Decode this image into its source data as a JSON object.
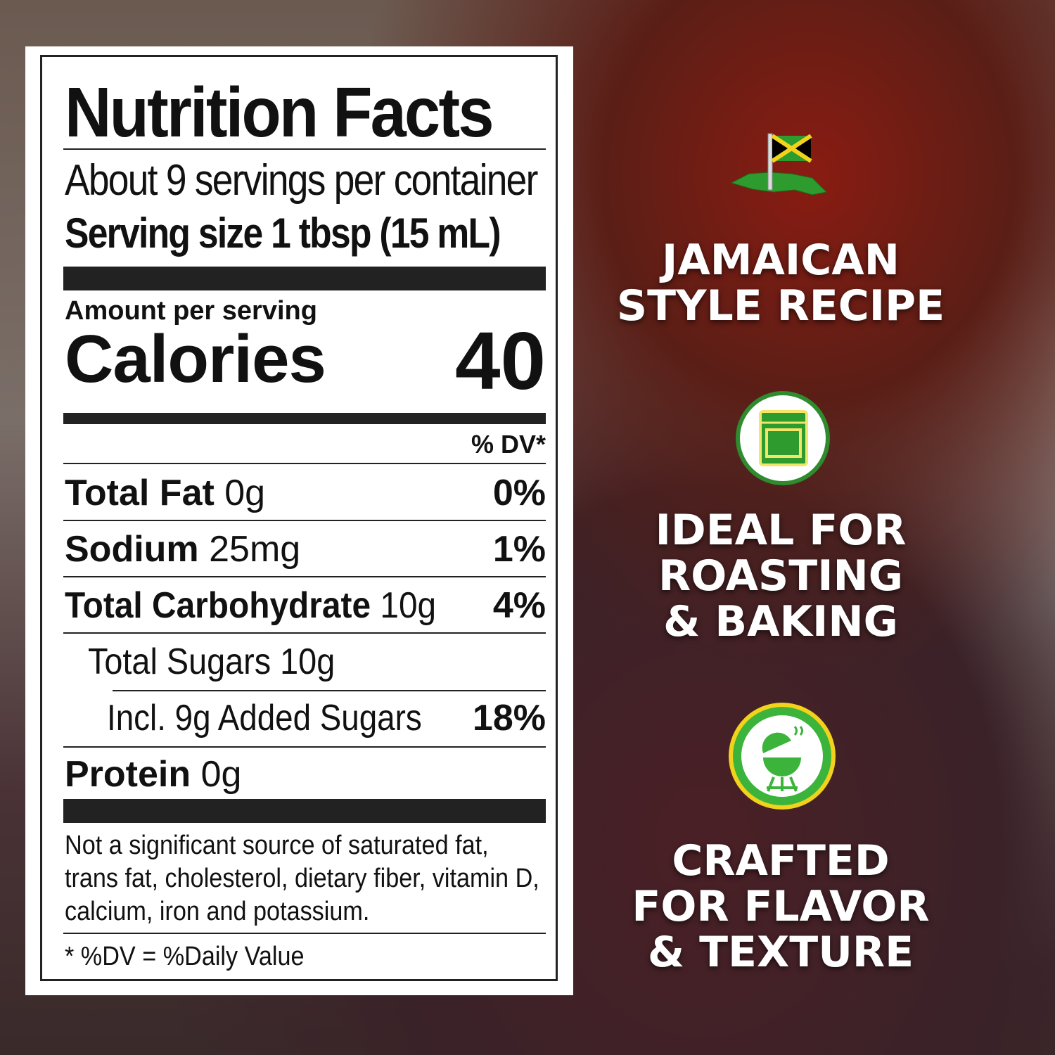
{
  "nutrition_label": {
    "title": "Nutrition Facts",
    "servings": "About 9 servings per container",
    "serving_size": "Serving size 1 tbsp (15 mL)",
    "amount_per_serving": "Amount per serving",
    "calories_label": "Calories",
    "calories_value": "40",
    "dv_header": "% DV*",
    "rows": [
      {
        "name": "Total Fat",
        "amount": "0g",
        "dv": "0%"
      },
      {
        "name": "Sodium",
        "amount": "25mg",
        "dv": "1%"
      },
      {
        "name": "Total Carbohydrate",
        "amount": "10g",
        "dv": "4%"
      },
      {
        "name": "Total Sugars 10g",
        "amount": "",
        "dv": ""
      },
      {
        "name": "Incl. 9g Added Sugars",
        "amount": "",
        "dv": "18%"
      },
      {
        "name": "Protein",
        "amount": "0g",
        "dv": ""
      }
    ],
    "footnote_lines": [
      "Not a significant source of saturated fat,",
      "trans fat, cholesterol, dietary fiber, vitamin D,",
      "calcium, iron and potassium."
    ],
    "dv_note": "* %DV = %Daily Value"
  },
  "features": [
    {
      "icon": "jamaica-flag-icon",
      "lines": [
        "JAMAICAN",
        "STYLE RECIPE"
      ]
    },
    {
      "icon": "oven-icon",
      "lines": [
        "IDEAL FOR",
        "ROASTING",
        "& BAKING"
      ]
    },
    {
      "icon": "grill-icon",
      "lines": [
        "CRAFTED",
        "FOR FLAVOR",
        "& TEXTURE"
      ]
    }
  ],
  "colors": {
    "green": "#2e9b2e",
    "yellow": "#f2d21a",
    "label_bg": "#ffffff"
  }
}
